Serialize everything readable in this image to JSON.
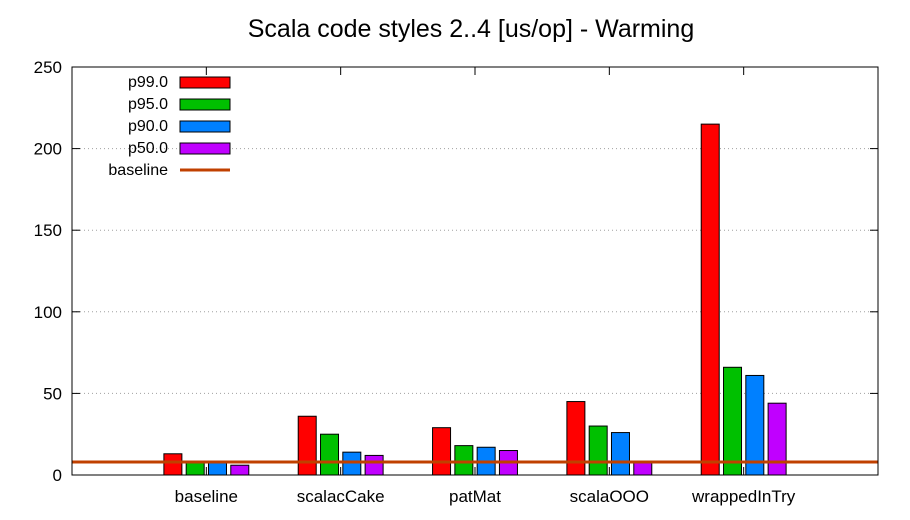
{
  "chart_data": {
    "type": "bar",
    "title": "Scala code styles 2..4 [us/op] - Warming",
    "xlabel": "",
    "ylabel": "",
    "categories": [
      "baseline",
      "scalacCake",
      "patMat",
      "scalaOOO",
      "wrappedInTry"
    ],
    "series": [
      {
        "name": "p99.0",
        "color": "#ff0000",
        "values": [
          13,
          36,
          29,
          45,
          215
        ]
      },
      {
        "name": "p95.0",
        "color": "#00c000",
        "values": [
          8,
          25,
          18,
          30,
          66
        ]
      },
      {
        "name": "p90.0",
        "color": "#0080ff",
        "values": [
          8,
          14,
          17,
          26,
          61
        ]
      },
      {
        "name": "p50.0",
        "color": "#c000ff",
        "values": [
          6,
          12,
          15,
          8,
          44
        ]
      }
    ],
    "baseline": {
      "name": "baseline",
      "color": "#c04000",
      "value": 8
    },
    "ylim": [
      0,
      250
    ],
    "yticks": [
      0,
      50,
      100,
      150,
      200,
      250
    ],
    "grid": true,
    "legend": "top-left"
  }
}
